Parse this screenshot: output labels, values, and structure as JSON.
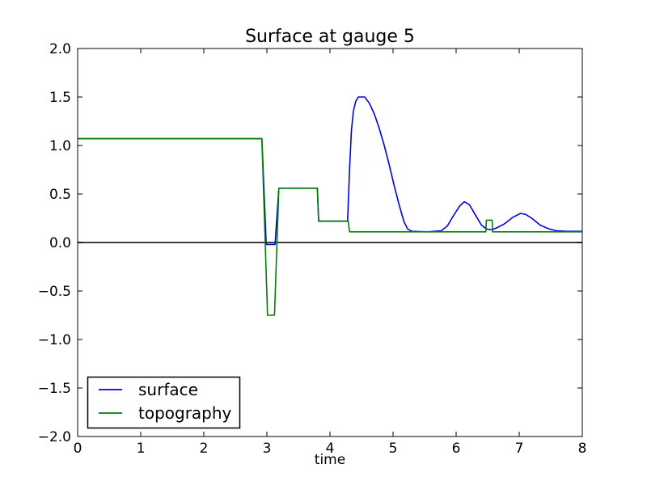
{
  "colors": {
    "background": "#ffffff",
    "axis": "#000000",
    "text": "#000000",
    "surface_line": "#0000e6",
    "topography_line": "#008000",
    "zero_line": "#3d3d3d"
  },
  "chart_data": {
    "type": "line",
    "title": "Surface at gauge 5",
    "xlabel": "time",
    "ylabel": "",
    "xlim": [
      0,
      8
    ],
    "ylim": [
      -2.0,
      2.0
    ],
    "grid": false,
    "xticks": {
      "values": [
        0,
        1,
        2,
        3,
        4,
        5,
        6,
        7,
        8
      ],
      "labels": [
        "0",
        "1",
        "2",
        "3",
        "4",
        "5",
        "6",
        "7",
        "8"
      ]
    },
    "yticks": {
      "values": [
        2.0,
        1.5,
        1.0,
        0.5,
        0.0,
        -0.5,
        -1.0,
        -1.5,
        -2.0
      ],
      "labels": [
        "2.0",
        "1.5",
        "1.0",
        "0.5",
        "0.0",
        "−0.5",
        "−1.0",
        "−1.5",
        "−2.0"
      ]
    },
    "zero_line": {
      "y": 0.0,
      "color": "#3d3d3d"
    },
    "legend": {
      "position": "lower left",
      "entries": [
        {
          "label": "surface",
          "color": "#0000e6"
        },
        {
          "label": "topography",
          "color": "#008000"
        }
      ]
    },
    "series": [
      {
        "name": "surface",
        "color": "#0000e6",
        "points": [
          [
            0.0,
            1.07
          ],
          [
            2.92,
            1.07
          ],
          [
            2.99,
            -0.02
          ],
          [
            3.13,
            -0.02
          ],
          [
            3.19,
            0.56
          ],
          [
            3.8,
            0.56
          ],
          [
            3.82,
            0.22
          ],
          [
            4.28,
            0.22
          ],
          [
            4.31,
            0.75
          ],
          [
            4.34,
            1.15
          ],
          [
            4.37,
            1.35
          ],
          [
            4.41,
            1.46
          ],
          [
            4.45,
            1.5
          ],
          [
            4.55,
            1.5
          ],
          [
            4.62,
            1.44
          ],
          [
            4.7,
            1.33
          ],
          [
            4.78,
            1.18
          ],
          [
            4.86,
            1.0
          ],
          [
            4.94,
            0.8
          ],
          [
            5.02,
            0.58
          ],
          [
            5.1,
            0.38
          ],
          [
            5.17,
            0.22
          ],
          [
            5.23,
            0.14
          ],
          [
            5.3,
            0.115
          ],
          [
            5.55,
            0.11
          ],
          [
            5.76,
            0.12
          ],
          [
            5.86,
            0.17
          ],
          [
            5.96,
            0.28
          ],
          [
            6.06,
            0.38
          ],
          [
            6.13,
            0.42
          ],
          [
            6.21,
            0.39
          ],
          [
            6.3,
            0.29
          ],
          [
            6.4,
            0.18
          ],
          [
            6.48,
            0.14
          ],
          [
            6.56,
            0.13
          ],
          [
            6.64,
            0.15
          ],
          [
            6.76,
            0.19
          ],
          [
            6.9,
            0.26
          ],
          [
            7.02,
            0.3
          ],
          [
            7.1,
            0.29
          ],
          [
            7.2,
            0.25
          ],
          [
            7.33,
            0.18
          ],
          [
            7.47,
            0.14
          ],
          [
            7.6,
            0.12
          ],
          [
            7.75,
            0.115
          ],
          [
            8.0,
            0.115
          ]
        ]
      },
      {
        "name": "topography",
        "color": "#008000",
        "points": [
          [
            0.0,
            1.07
          ],
          [
            2.92,
            1.07
          ],
          [
            3.01,
            -0.75
          ],
          [
            3.12,
            -0.75
          ],
          [
            3.19,
            0.56
          ],
          [
            3.8,
            0.56
          ],
          [
            3.82,
            0.22
          ],
          [
            4.29,
            0.22
          ],
          [
            4.31,
            0.11
          ],
          [
            6.47,
            0.11
          ],
          [
            6.48,
            0.23
          ],
          [
            6.57,
            0.23
          ],
          [
            6.58,
            0.11
          ],
          [
            8.0,
            0.11
          ]
        ]
      }
    ]
  }
}
